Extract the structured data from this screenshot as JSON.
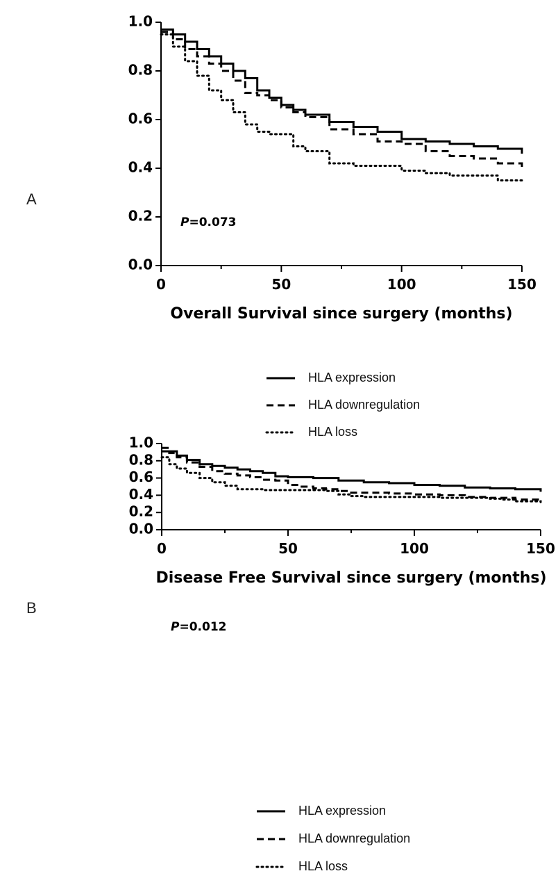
{
  "chart_data": [
    {
      "type": "line",
      "panel_label": "A",
      "xlabel": "Overall Survival since surgery (months)",
      "ylabel": "",
      "xlim": [
        0,
        150
      ],
      "ylim": [
        0,
        1
      ],
      "xticks": [
        "0",
        "50",
        "100",
        "150"
      ],
      "yticks": [
        "0.0",
        "0.2",
        "0.4",
        "0.6",
        "0.8",
        "1.0"
      ],
      "annotation": {
        "italic": "P",
        "rest": "=0.073"
      },
      "legend": "below",
      "series": [
        {
          "name": "HLA expression",
          "style": "solid",
          "x": [
            0,
            5,
            10,
            15,
            20,
            25,
            30,
            35,
            40,
            45,
            50,
            55,
            60,
            70,
            80,
            90,
            100,
            110,
            120,
            130,
            140,
            150
          ],
          "y": [
            0.97,
            0.95,
            0.92,
            0.89,
            0.86,
            0.83,
            0.8,
            0.77,
            0.72,
            0.69,
            0.66,
            0.64,
            0.62,
            0.59,
            0.57,
            0.55,
            0.52,
            0.51,
            0.5,
            0.49,
            0.48,
            0.46
          ]
        },
        {
          "name": "HLA downregulation",
          "style": "dashed",
          "x": [
            0,
            5,
            10,
            15,
            20,
            25,
            30,
            35,
            40,
            45,
            50,
            55,
            60,
            70,
            80,
            90,
            100,
            110,
            120,
            130,
            140,
            150
          ],
          "y": [
            0.96,
            0.93,
            0.89,
            0.86,
            0.83,
            0.8,
            0.76,
            0.71,
            0.7,
            0.68,
            0.65,
            0.63,
            0.61,
            0.56,
            0.54,
            0.51,
            0.5,
            0.47,
            0.45,
            0.44,
            0.42,
            0.4
          ]
        },
        {
          "name": "HLA loss",
          "style": "dotted",
          "x": [
            0,
            5,
            10,
            15,
            20,
            25,
            30,
            35,
            40,
            45,
            50,
            55,
            60,
            70,
            80,
            90,
            100,
            110,
            120,
            130,
            140,
            150
          ],
          "y": [
            0.95,
            0.9,
            0.84,
            0.78,
            0.72,
            0.68,
            0.63,
            0.58,
            0.55,
            0.54,
            0.54,
            0.49,
            0.47,
            0.42,
            0.41,
            0.41,
            0.39,
            0.38,
            0.37,
            0.37,
            0.35,
            0.35
          ]
        }
      ]
    },
    {
      "type": "line",
      "panel_label": "B",
      "xlabel": "Disease Free Survival since surgery (months)",
      "ylabel": "",
      "xlim": [
        0,
        150
      ],
      "ylim": [
        0,
        1
      ],
      "xticks": [
        "0",
        "50",
        "100",
        "150"
      ],
      "yticks": [
        "0.0",
        "0.2",
        "0.4",
        "0.6",
        "0.8",
        "1.0"
      ],
      "annotation": {
        "italic": "P",
        "rest": "=0.012"
      },
      "legend": "below",
      "series": [
        {
          "name": "HLA expression",
          "style": "solid",
          "x": [
            0,
            3,
            6,
            10,
            15,
            20,
            25,
            30,
            35,
            40,
            45,
            50,
            60,
            70,
            80,
            90,
            100,
            110,
            120,
            130,
            140,
            148,
            150
          ],
          "y": [
            0.91,
            0.91,
            0.86,
            0.81,
            0.76,
            0.74,
            0.72,
            0.7,
            0.68,
            0.66,
            0.62,
            0.61,
            0.6,
            0.57,
            0.55,
            0.54,
            0.52,
            0.51,
            0.49,
            0.48,
            0.47,
            0.47,
            0.44
          ]
        },
        {
          "name": "HLA downregulation",
          "style": "dashed",
          "x": [
            0,
            3,
            6,
            10,
            15,
            20,
            25,
            30,
            35,
            40,
            45,
            50,
            55,
            60,
            65,
            70,
            75,
            80,
            90,
            100,
            110,
            120,
            130,
            140,
            150
          ],
          "y": [
            0.95,
            0.89,
            0.84,
            0.78,
            0.73,
            0.68,
            0.65,
            0.63,
            0.61,
            0.58,
            0.57,
            0.52,
            0.5,
            0.48,
            0.47,
            0.45,
            0.43,
            0.43,
            0.42,
            0.41,
            0.4,
            0.38,
            0.37,
            0.35,
            0.35
          ]
        },
        {
          "name": "HLA loss",
          "style": "dotted",
          "x": [
            0,
            3,
            6,
            10,
            15,
            20,
            25,
            30,
            40,
            50,
            60,
            65,
            70,
            75,
            80,
            90,
            100,
            110,
            120,
            130,
            135,
            140,
            150
          ],
          "y": [
            0.84,
            0.76,
            0.71,
            0.66,
            0.6,
            0.55,
            0.51,
            0.47,
            0.46,
            0.46,
            0.46,
            0.45,
            0.41,
            0.39,
            0.38,
            0.38,
            0.38,
            0.37,
            0.37,
            0.36,
            0.35,
            0.33,
            0.32
          ]
        }
      ]
    }
  ]
}
